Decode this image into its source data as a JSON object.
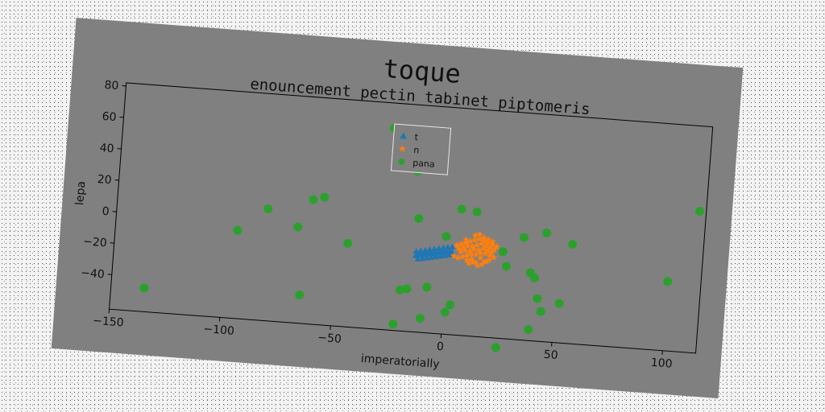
{
  "chart_data": {
    "type": "scatter",
    "title": "toque",
    "subtitle": "enouncement pectin tabinet piptomeris",
    "xlabel": "imperatorially",
    "ylabel": "lepa",
    "xlim": [
      -150,
      115
    ],
    "ylim": [
      -62,
      82
    ],
    "xticks": [
      -150,
      -100,
      -50,
      0,
      50,
      100
    ],
    "yticks": [
      -40,
      -20,
      0,
      20,
      40,
      60,
      80
    ],
    "grid": false,
    "legend_position": "top-center",
    "series": [
      {
        "name": "t",
        "color": "#1f77b4",
        "marker": "triangle",
        "x": [
          -14,
          -13,
          -12,
          -11,
          -10,
          -9,
          -8,
          -7,
          -6,
          -5,
          -4,
          -3,
          -2,
          -1,
          0,
          1,
          2,
          -14,
          -12,
          -10,
          -8,
          -6,
          -4,
          -2,
          0,
          2,
          -13,
          -11,
          -9,
          -7,
          -5,
          -3,
          -1,
          1
        ],
        "y": [
          -13.5,
          -13,
          -12.8,
          -12.5,
          -12.2,
          -12,
          -11.8,
          -11.5,
          -11.2,
          -11,
          -10.8,
          -10.5,
          -10.2,
          -10,
          -9.8,
          -9.5,
          -9.2,
          -10.8,
          -10.2,
          -9.6,
          -9,
          -8.4,
          -7.8,
          -7.2,
          -6.6,
          -6.2,
          -15.5,
          -15,
          -14.4,
          -13.8,
          -13.2,
          -12.6,
          -12,
          -11.4
        ]
      },
      {
        "name": "n",
        "color": "#ff7f0e",
        "marker": "star",
        "x": [
          4,
          6,
          8,
          10,
          12,
          14,
          16,
          18,
          20,
          22,
          5,
          7,
          9,
          11,
          13,
          15,
          17,
          19,
          21,
          6,
          8,
          10,
          12,
          14,
          16,
          18,
          20,
          9,
          11,
          13,
          15,
          17,
          19,
          3,
          5,
          7,
          9,
          11,
          13,
          15,
          17,
          19,
          21,
          10,
          12,
          14,
          16,
          18,
          8,
          12,
          16,
          20,
          14,
          18
        ],
        "y": [
          -5,
          -4,
          -3,
          -2,
          -1,
          0,
          -1,
          -2,
          -3,
          -4,
          -7,
          -6,
          -5,
          -5,
          -4,
          -3,
          -4,
          -5,
          -6,
          -9,
          -8,
          -8,
          -7,
          -7,
          -6,
          -7,
          -8,
          -11,
          -10,
          -10,
          -9,
          -9,
          -10,
          -12,
          -13,
          -12,
          -14,
          -13,
          -15,
          -12,
          -14,
          -13,
          -11,
          -16,
          -15,
          -17,
          -16,
          -14,
          -1,
          2,
          1,
          -1,
          3,
          0
        ]
      },
      {
        "name": "pana",
        "color": "#2ca02c",
        "marker": "circle",
        "x": [
          -28,
          -16,
          -135,
          -95,
          -82,
          -68,
          -62,
          -57,
          -45,
          -65,
          -14,
          -8,
          5,
          12,
          -1,
          27,
          34,
          44,
          56,
          100,
          112,
          1,
          25,
          38,
          40,
          42,
          39,
          44,
          52,
          -20,
          -22,
          -10,
          3,
          25,
          -17
        ],
        "y": [
          66,
          40,
          -47,
          -6,
          9,
          -1,
          17,
          19,
          -9,
          -44,
          10,
          -33,
          18,
          17,
          0,
          -16,
          3,
          7,
          1,
          -18,
          28,
          -48,
          -7,
          -19,
          -22,
          -35,
          -55,
          -43,
          -37,
          -36,
          -58,
          -53,
          -43,
          -68,
          -35
        ]
      }
    ]
  }
}
